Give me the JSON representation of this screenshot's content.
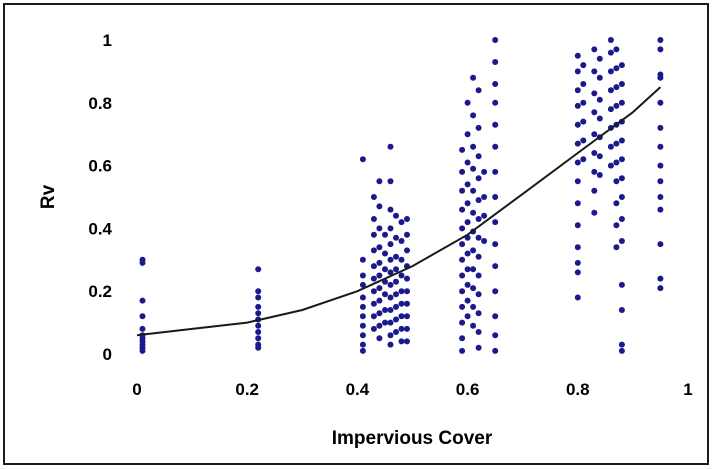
{
  "chart_data": {
    "type": "scatter",
    "title": "",
    "xlabel": "Impervious Cover",
    "ylabel": "Rv",
    "xlim": [
      0,
      1
    ],
    "ylim": [
      0,
      1
    ],
    "xticks": [
      "0",
      "0.2",
      "0.4",
      "0.6",
      "0.8",
      "1"
    ],
    "yticks": [
      "0",
      "0.2",
      "0.4",
      "0.6",
      "0.8",
      "1"
    ],
    "grid": false,
    "legend": "none",
    "colors": {
      "points": "#1a1a8c",
      "trend": "#1a1a1a",
      "frame": "#1a1a1a"
    },
    "trendline": {
      "type": "polynomial",
      "x": [
        0.0,
        0.1,
        0.2,
        0.3,
        0.4,
        0.5,
        0.6,
        0.7,
        0.8,
        0.9,
        0.95
      ],
      "y": [
        0.06,
        0.08,
        0.1,
        0.14,
        0.2,
        0.28,
        0.38,
        0.51,
        0.64,
        0.77,
        0.85
      ]
    },
    "series": [
      {
        "points": [
          [
            0.01,
            0.3
          ],
          [
            0.01,
            0.29
          ],
          [
            0.01,
            0.17
          ],
          [
            0.01,
            0.12
          ],
          [
            0.01,
            0.08
          ],
          [
            0.01,
            0.06
          ],
          [
            0.01,
            0.05
          ],
          [
            0.01,
            0.04
          ],
          [
            0.01,
            0.03
          ],
          [
            0.01,
            0.02
          ],
          [
            0.01,
            0.01
          ],
          [
            0.22,
            0.27
          ],
          [
            0.22,
            0.2
          ],
          [
            0.22,
            0.18
          ],
          [
            0.22,
            0.15
          ],
          [
            0.22,
            0.13
          ],
          [
            0.22,
            0.11
          ],
          [
            0.22,
            0.09
          ],
          [
            0.22,
            0.07
          ],
          [
            0.22,
            0.05
          ],
          [
            0.22,
            0.03
          ],
          [
            0.22,
            0.02
          ],
          [
            0.41,
            0.62
          ],
          [
            0.41,
            0.3
          ],
          [
            0.41,
            0.25
          ],
          [
            0.41,
            0.22
          ],
          [
            0.41,
            0.18
          ],
          [
            0.41,
            0.15
          ],
          [
            0.41,
            0.12
          ],
          [
            0.41,
            0.09
          ],
          [
            0.41,
            0.06
          ],
          [
            0.41,
            0.03
          ],
          [
            0.41,
            0.01
          ],
          [
            0.43,
            0.5
          ],
          [
            0.43,
            0.43
          ],
          [
            0.43,
            0.38
          ],
          [
            0.43,
            0.33
          ],
          [
            0.43,
            0.28
          ],
          [
            0.43,
            0.24
          ],
          [
            0.43,
            0.2
          ],
          [
            0.43,
            0.16
          ],
          [
            0.43,
            0.12
          ],
          [
            0.43,
            0.08
          ],
          [
            0.44,
            0.55
          ],
          [
            0.44,
            0.47
          ],
          [
            0.44,
            0.4
          ],
          [
            0.44,
            0.34
          ],
          [
            0.44,
            0.29
          ],
          [
            0.44,
            0.25
          ],
          [
            0.44,
            0.21
          ],
          [
            0.44,
            0.17
          ],
          [
            0.44,
            0.13
          ],
          [
            0.44,
            0.09
          ],
          [
            0.44,
            0.05
          ],
          [
            0.45,
            0.38
          ],
          [
            0.45,
            0.32
          ],
          [
            0.45,
            0.27
          ],
          [
            0.45,
            0.23
          ],
          [
            0.45,
            0.19
          ],
          [
            0.45,
            0.14
          ],
          [
            0.45,
            0.1
          ],
          [
            0.46,
            0.66
          ],
          [
            0.46,
            0.55
          ],
          [
            0.46,
            0.46
          ],
          [
            0.46,
            0.4
          ],
          [
            0.46,
            0.35
          ],
          [
            0.46,
            0.3
          ],
          [
            0.46,
            0.26
          ],
          [
            0.46,
            0.22
          ],
          [
            0.46,
            0.18
          ],
          [
            0.46,
            0.14
          ],
          [
            0.46,
            0.1
          ],
          [
            0.46,
            0.06
          ],
          [
            0.46,
            0.03
          ],
          [
            0.47,
            0.44
          ],
          [
            0.47,
            0.37
          ],
          [
            0.47,
            0.31
          ],
          [
            0.47,
            0.27
          ],
          [
            0.47,
            0.23
          ],
          [
            0.47,
            0.19
          ],
          [
            0.47,
            0.15
          ],
          [
            0.47,
            0.11
          ],
          [
            0.47,
            0.07
          ],
          [
            0.48,
            0.42
          ],
          [
            0.48,
            0.36
          ],
          [
            0.48,
            0.3
          ],
          [
            0.48,
            0.25
          ],
          [
            0.48,
            0.2
          ],
          [
            0.48,
            0.16
          ],
          [
            0.48,
            0.12
          ],
          [
            0.48,
            0.08
          ],
          [
            0.48,
            0.04
          ],
          [
            0.49,
            0.43
          ],
          [
            0.49,
            0.38
          ],
          [
            0.49,
            0.33
          ],
          [
            0.49,
            0.28
          ],
          [
            0.49,
            0.24
          ],
          [
            0.49,
            0.2
          ],
          [
            0.49,
            0.16
          ],
          [
            0.49,
            0.12
          ],
          [
            0.49,
            0.08
          ],
          [
            0.49,
            0.04
          ],
          [
            0.59,
            0.65
          ],
          [
            0.59,
            0.58
          ],
          [
            0.59,
            0.52
          ],
          [
            0.59,
            0.46
          ],
          [
            0.59,
            0.4
          ],
          [
            0.59,
            0.35
          ],
          [
            0.59,
            0.3
          ],
          [
            0.59,
            0.25
          ],
          [
            0.59,
            0.2
          ],
          [
            0.59,
            0.15
          ],
          [
            0.59,
            0.1
          ],
          [
            0.59,
            0.05
          ],
          [
            0.59,
            0.01
          ],
          [
            0.6,
            0.8
          ],
          [
            0.6,
            0.7
          ],
          [
            0.6,
            0.61
          ],
          [
            0.6,
            0.54
          ],
          [
            0.6,
            0.48
          ],
          [
            0.6,
            0.42
          ],
          [
            0.6,
            0.37
          ],
          [
            0.6,
            0.32
          ],
          [
            0.6,
            0.27
          ],
          [
            0.6,
            0.22
          ],
          [
            0.6,
            0.17
          ],
          [
            0.6,
            0.12
          ],
          [
            0.61,
            0.88
          ],
          [
            0.61,
            0.76
          ],
          [
            0.61,
            0.66
          ],
          [
            0.61,
            0.59
          ],
          [
            0.61,
            0.52
          ],
          [
            0.61,
            0.45
          ],
          [
            0.61,
            0.39
          ],
          [
            0.61,
            0.33
          ],
          [
            0.61,
            0.27
          ],
          [
            0.61,
            0.21
          ],
          [
            0.61,
            0.15
          ],
          [
            0.61,
            0.09
          ],
          [
            0.62,
            0.84
          ],
          [
            0.62,
            0.72
          ],
          [
            0.62,
            0.63
          ],
          [
            0.62,
            0.56
          ],
          [
            0.62,
            0.49
          ],
          [
            0.62,
            0.43
          ],
          [
            0.62,
            0.37
          ],
          [
            0.62,
            0.31
          ],
          [
            0.62,
            0.25
          ],
          [
            0.62,
            0.19
          ],
          [
            0.62,
            0.13
          ],
          [
            0.62,
            0.07
          ],
          [
            0.62,
            0.02
          ],
          [
            0.63,
            0.58
          ],
          [
            0.63,
            0.5
          ],
          [
            0.63,
            0.44
          ],
          [
            0.63,
            0.36
          ],
          [
            0.65,
            1.0
          ],
          [
            0.65,
            0.93
          ],
          [
            0.65,
            0.86
          ],
          [
            0.65,
            0.8
          ],
          [
            0.65,
            0.73
          ],
          [
            0.65,
            0.66
          ],
          [
            0.65,
            0.58
          ],
          [
            0.65,
            0.5
          ],
          [
            0.65,
            0.42
          ],
          [
            0.65,
            0.35
          ],
          [
            0.65,
            0.28
          ],
          [
            0.65,
            0.2
          ],
          [
            0.65,
            0.12
          ],
          [
            0.65,
            0.06
          ],
          [
            0.65,
            0.01
          ],
          [
            0.8,
            0.95
          ],
          [
            0.8,
            0.9
          ],
          [
            0.8,
            0.84
          ],
          [
            0.8,
            0.79
          ],
          [
            0.8,
            0.73
          ],
          [
            0.8,
            0.67
          ],
          [
            0.8,
            0.61
          ],
          [
            0.8,
            0.55
          ],
          [
            0.8,
            0.48
          ],
          [
            0.8,
            0.41
          ],
          [
            0.8,
            0.34
          ],
          [
            0.8,
            0.29
          ],
          [
            0.8,
            0.26
          ],
          [
            0.8,
            0.18
          ],
          [
            0.81,
            0.92
          ],
          [
            0.81,
            0.86
          ],
          [
            0.81,
            0.8
          ],
          [
            0.81,
            0.74
          ],
          [
            0.81,
            0.68
          ],
          [
            0.81,
            0.62
          ],
          [
            0.83,
            0.97
          ],
          [
            0.83,
            0.9
          ],
          [
            0.83,
            0.83
          ],
          [
            0.83,
            0.77
          ],
          [
            0.83,
            0.7
          ],
          [
            0.83,
            0.64
          ],
          [
            0.83,
            0.58
          ],
          [
            0.83,
            0.52
          ],
          [
            0.83,
            0.45
          ],
          [
            0.84,
            0.94
          ],
          [
            0.84,
            0.88
          ],
          [
            0.84,
            0.81
          ],
          [
            0.84,
            0.75
          ],
          [
            0.84,
            0.69
          ],
          [
            0.84,
            0.63
          ],
          [
            0.84,
            0.57
          ],
          [
            0.86,
            1.0
          ],
          [
            0.86,
            0.96
          ],
          [
            0.86,
            0.9
          ],
          [
            0.86,
            0.84
          ],
          [
            0.86,
            0.78
          ],
          [
            0.86,
            0.72
          ],
          [
            0.86,
            0.66
          ],
          [
            0.86,
            0.6
          ],
          [
            0.87,
            0.97
          ],
          [
            0.87,
            0.91
          ],
          [
            0.87,
            0.85
          ],
          [
            0.87,
            0.79
          ],
          [
            0.87,
            0.73
          ],
          [
            0.87,
            0.67
          ],
          [
            0.87,
            0.61
          ],
          [
            0.87,
            0.55
          ],
          [
            0.87,
            0.48
          ],
          [
            0.87,
            0.41
          ],
          [
            0.87,
            0.34
          ],
          [
            0.88,
            0.92
          ],
          [
            0.88,
            0.86
          ],
          [
            0.88,
            0.8
          ],
          [
            0.88,
            0.74
          ],
          [
            0.88,
            0.68
          ],
          [
            0.88,
            0.62
          ],
          [
            0.88,
            0.56
          ],
          [
            0.88,
            0.5
          ],
          [
            0.88,
            0.43
          ],
          [
            0.88,
            0.36
          ],
          [
            0.88,
            0.22
          ],
          [
            0.88,
            0.14
          ],
          [
            0.88,
            0.03
          ],
          [
            0.88,
            0.01
          ],
          [
            0.95,
            1.0
          ],
          [
            0.95,
            0.97
          ],
          [
            0.95,
            0.89
          ],
          [
            0.95,
            0.88
          ],
          [
            0.95,
            0.8
          ],
          [
            0.95,
            0.72
          ],
          [
            0.95,
            0.66
          ],
          [
            0.95,
            0.6
          ],
          [
            0.95,
            0.55
          ],
          [
            0.95,
            0.5
          ],
          [
            0.95,
            0.46
          ],
          [
            0.95,
            0.35
          ],
          [
            0.95,
            0.24
          ],
          [
            0.95,
            0.21
          ]
        ]
      }
    ]
  }
}
